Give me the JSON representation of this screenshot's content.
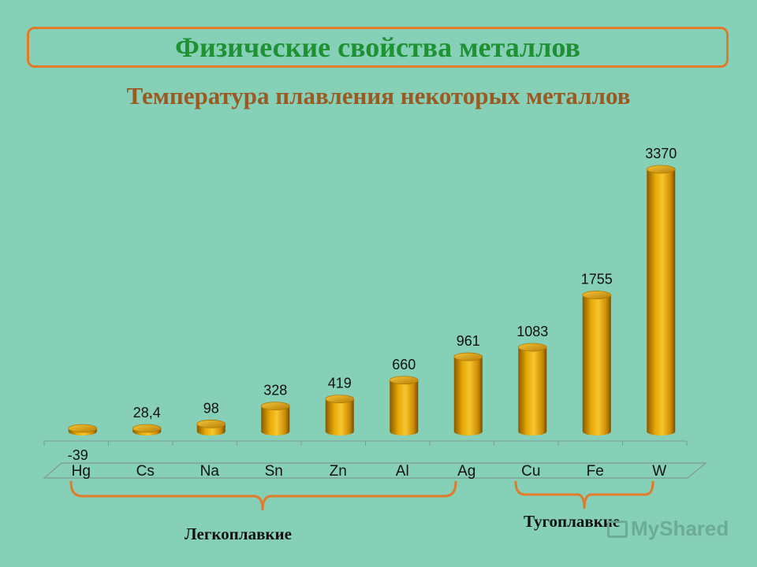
{
  "title": "Физические свойства металлов",
  "subtitle": "Температура плавления некоторых металлов",
  "chart_data": {
    "type": "bar",
    "categories": [
      "Hg",
      "Cs",
      "Na",
      "Sn",
      "Zn",
      "Al",
      "Ag",
      "Cu",
      "Fe",
      "W"
    ],
    "values": [
      -39,
      28.4,
      98,
      328,
      419,
      660,
      961,
      1083,
      1755,
      3370
    ],
    "value_labels": [
      "-39",
      "28,4",
      "98",
      "328",
      "419",
      "660",
      "961",
      "1083",
      "1755",
      "3370"
    ],
    "title": "Температура плавления некоторых металлов",
    "xlabel": "",
    "ylabel": "",
    "bar_color": "#e3a50a",
    "grid": false
  },
  "groups": {
    "fusible_label": "Легкоплавкие",
    "refractory_label": "Тугоплавкие"
  },
  "colors": {
    "background": "#86d0b8",
    "title": "#1e9232",
    "subtitle": "#9a5a22",
    "frame": "#e07b2a",
    "bar": "#e3a50a"
  },
  "watermark": "MyShared"
}
